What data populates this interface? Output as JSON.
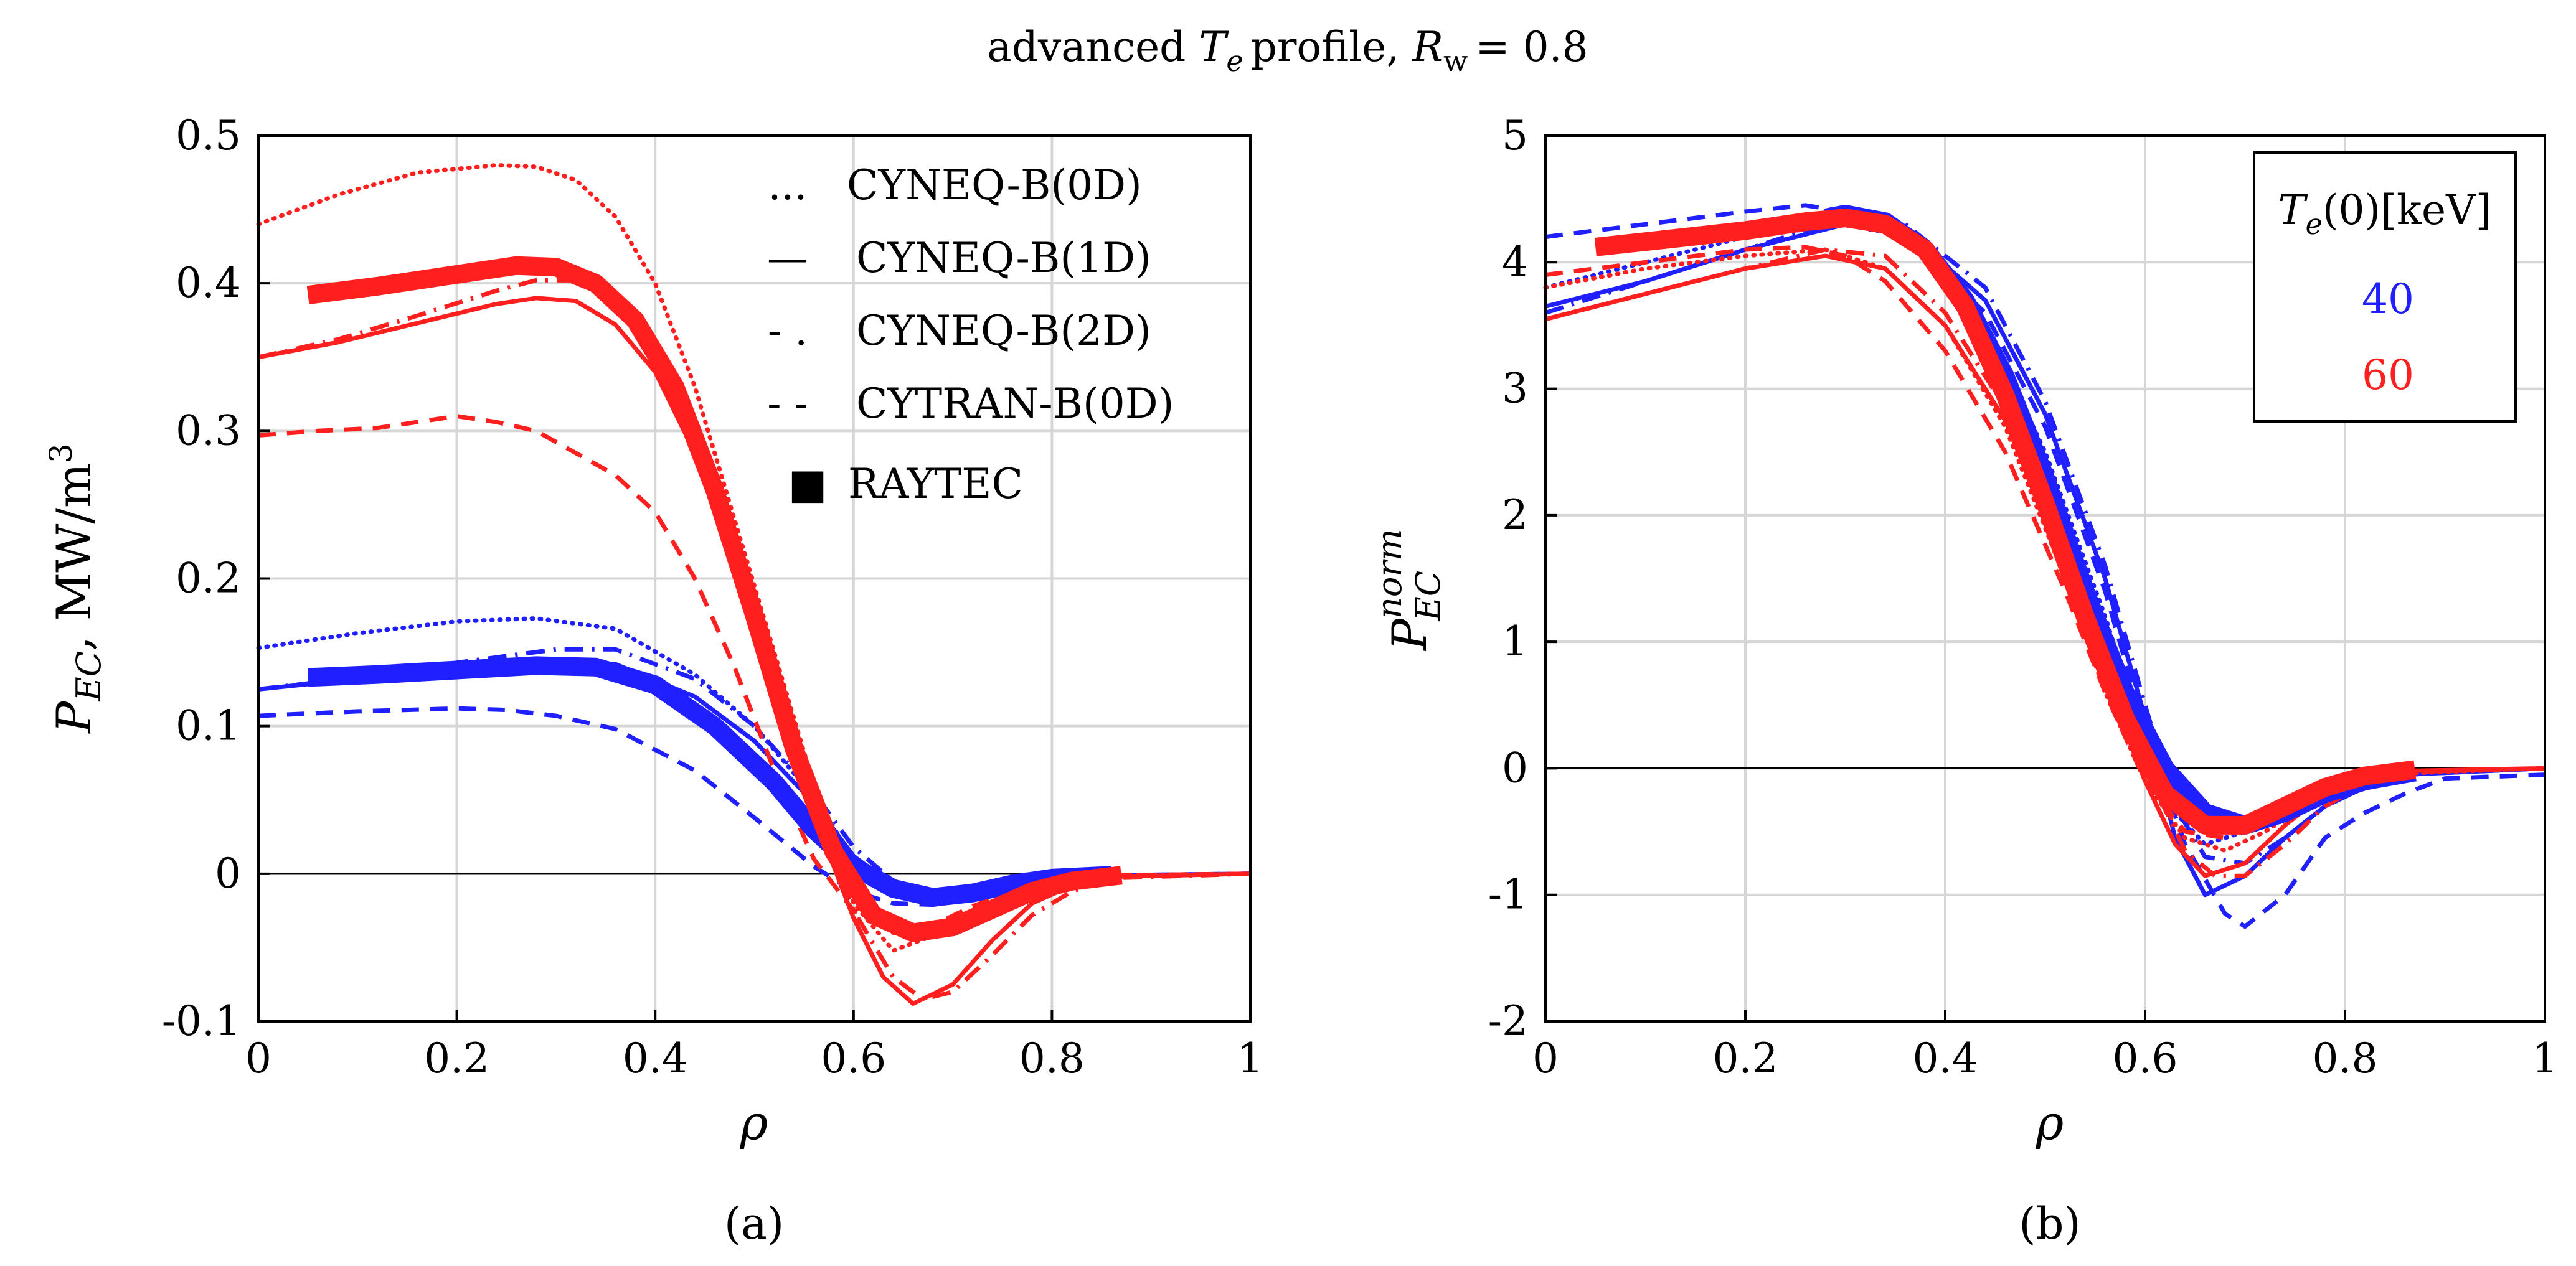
{
  "figure": {
    "title": {
      "prefix": "advanced",
      "te_symbol": "T",
      "te_subscript": "e",
      "middle": "profile,",
      "rw_symbol": "R",
      "rw_subscript": "w",
      "suffix": "= 0.8"
    },
    "panel_labels": [
      "(a)",
      "(b)"
    ]
  },
  "chart_data": [
    {
      "panel": "(a)",
      "type": "line",
      "xlabel": "ρ",
      "ylabel": "P_EC, MW/m^3",
      "ylabel_parts": {
        "symbol": "P",
        "subscript": "EC",
        "separator": ",",
        "units": "MW/m",
        "units_sup": "3"
      },
      "xlim": [
        0,
        1
      ],
      "ylim": [
        -0.1,
        0.5
      ],
      "xticks": [
        0,
        0.2,
        0.4,
        0.6,
        0.8,
        1
      ],
      "xtick_labels": [
        "0",
        "0.2",
        "0.4",
        "0.6",
        "0.8",
        "1"
      ],
      "yticks": [
        -0.1,
        0,
        0.1,
        0.2,
        0.3,
        0.4,
        0.5
      ],
      "ytick_labels": [
        "-0.1",
        "0",
        "0.1",
        "0.2",
        "0.3",
        "0.4",
        "0.5"
      ],
      "grid": true,
      "legend": {
        "placement": "top-right",
        "entries": [
          {
            "marker": "...",
            "label": "CYNEQ-B(0D)",
            "style": "dotted"
          },
          {
            "marker": "—",
            "label": "CYNEQ-B(1D)",
            "style": "solid"
          },
          {
            "marker": "- .",
            "label": "CYNEQ-B(2D)",
            "style": "dashdot"
          },
          {
            "marker": "- -",
            "label": "CYTRAN-B(0D)",
            "style": "dashed"
          },
          {
            "marker": "■",
            "label": "RAYTEC",
            "style": "thick"
          }
        ]
      },
      "series": [
        {
          "te0": "40",
          "code": "CYNEQ-B(0D)",
          "style": "dotted",
          "color": "#1f1fff",
          "x": [
            0,
            0.1,
            0.2,
            0.28,
            0.36,
            0.44,
            0.5,
            0.56,
            0.6,
            0.64,
            0.68,
            0.72,
            0.76,
            0.8,
            0.86,
            1
          ],
          "y": [
            0.153,
            0.163,
            0.171,
            0.173,
            0.166,
            0.135,
            0.1,
            0.052,
            0.01,
            -0.012,
            -0.018,
            -0.014,
            -0.007,
            -0.003,
            -0.001,
            0
          ]
        },
        {
          "te0": "40",
          "code": "CYNEQ-B(1D)",
          "style": "solid",
          "color": "#1f1fff",
          "x": [
            0,
            0.1,
            0.2,
            0.3,
            0.36,
            0.44,
            0.5,
            0.56,
            0.6,
            0.64,
            0.68,
            0.72,
            0.76,
            0.8,
            0.86,
            1
          ],
          "y": [
            0.125,
            0.132,
            0.14,
            0.145,
            0.142,
            0.12,
            0.09,
            0.048,
            0.012,
            -0.008,
            -0.015,
            -0.012,
            -0.006,
            -0.003,
            -0.001,
            0
          ]
        },
        {
          "te0": "40",
          "code": "CYNEQ-B(2D)",
          "style": "dashdot",
          "color": "#1f1fff",
          "x": [
            0,
            0.1,
            0.2,
            0.3,
            0.36,
            0.44,
            0.5,
            0.56,
            0.6,
            0.64,
            0.68,
            0.72,
            0.76,
            0.8,
            0.86,
            1
          ],
          "y": [
            0.125,
            0.133,
            0.143,
            0.152,
            0.152,
            0.132,
            0.1,
            0.055,
            0.018,
            -0.005,
            -0.016,
            -0.016,
            -0.01,
            -0.004,
            -0.001,
            0
          ]
        },
        {
          "te0": "40",
          "code": "CYTRAN-B(0D)",
          "style": "dashed",
          "color": "#1f1fff",
          "x": [
            0,
            0.1,
            0.2,
            0.25,
            0.3,
            0.36,
            0.44,
            0.5,
            0.56,
            0.6,
            0.64,
            0.68,
            0.72,
            0.76,
            0.8,
            0.86,
            1
          ],
          "y": [
            0.107,
            0.11,
            0.112,
            0.111,
            0.107,
            0.098,
            0.07,
            0.038,
            0.005,
            -0.012,
            -0.02,
            -0.021,
            -0.017,
            -0.01,
            -0.004,
            -0.001,
            0
          ]
        },
        {
          "te0": "40",
          "code": "RAYTEC",
          "style": "thick",
          "color": "#1f1fff",
          "x": [
            0.05,
            0.12,
            0.2,
            0.28,
            0.34,
            0.4,
            0.46,
            0.52,
            0.56,
            0.6,
            0.64,
            0.68,
            0.72,
            0.76,
            0.8,
            0.86
          ],
          "y": [
            0.133,
            0.135,
            0.138,
            0.141,
            0.14,
            0.128,
            0.1,
            0.062,
            0.03,
            0.005,
            -0.01,
            -0.016,
            -0.013,
            -0.007,
            -0.003,
            -0.001
          ]
        },
        {
          "te0": "60",
          "code": "CYNEQ-B(0D)",
          "style": "dotted",
          "color": "#ff1f1f",
          "x": [
            0,
            0.08,
            0.16,
            0.24,
            0.28,
            0.32,
            0.36,
            0.4,
            0.44,
            0.48,
            0.52,
            0.56,
            0.6,
            0.64,
            0.68,
            0.72,
            0.76,
            0.8,
            0.86,
            1
          ],
          "y": [
            0.44,
            0.46,
            0.475,
            0.48,
            0.479,
            0.47,
            0.445,
            0.4,
            0.33,
            0.24,
            0.15,
            0.06,
            -0.02,
            -0.052,
            -0.042,
            -0.028,
            -0.014,
            -0.006,
            -0.001,
            0
          ]
        },
        {
          "te0": "60",
          "code": "CYNEQ-B(1D)",
          "style": "solid",
          "color": "#ff1f1f",
          "x": [
            0,
            0.08,
            0.16,
            0.24,
            0.28,
            0.32,
            0.36,
            0.4,
            0.44,
            0.48,
            0.52,
            0.56,
            0.6,
            0.63,
            0.66,
            0.7,
            0.74,
            0.78,
            0.82,
            0.86,
            1
          ],
          "y": [
            0.35,
            0.36,
            0.373,
            0.386,
            0.39,
            0.388,
            0.372,
            0.34,
            0.285,
            0.21,
            0.12,
            0.04,
            -0.03,
            -0.07,
            -0.088,
            -0.075,
            -0.045,
            -0.02,
            -0.008,
            -0.002,
            0
          ]
        },
        {
          "te0": "60",
          "code": "CYNEQ-B(2D)",
          "style": "dashdot",
          "color": "#ff1f1f",
          "x": [
            0,
            0.08,
            0.16,
            0.24,
            0.28,
            0.32,
            0.36,
            0.4,
            0.44,
            0.48,
            0.52,
            0.56,
            0.6,
            0.64,
            0.67,
            0.7,
            0.74,
            0.78,
            0.82,
            0.86,
            1
          ],
          "y": [
            0.35,
            0.362,
            0.378,
            0.395,
            0.402,
            0.402,
            0.39,
            0.36,
            0.305,
            0.225,
            0.13,
            0.045,
            -0.025,
            -0.07,
            -0.085,
            -0.08,
            -0.055,
            -0.028,
            -0.012,
            -0.003,
            0
          ]
        },
        {
          "te0": "60",
          "code": "CYTRAN-B(0D)",
          "style": "dashed",
          "color": "#ff1f1f",
          "x": [
            0,
            0.06,
            0.12,
            0.2,
            0.24,
            0.28,
            0.32,
            0.36,
            0.4,
            0.44,
            0.48,
            0.52,
            0.56,
            0.6,
            0.64,
            0.68,
            0.72,
            0.76,
            0.8,
            0.86,
            1
          ],
          "y": [
            0.297,
            0.3,
            0.302,
            0.31,
            0.306,
            0.3,
            0.285,
            0.27,
            0.245,
            0.2,
            0.14,
            0.07,
            0.01,
            -0.025,
            -0.04,
            -0.035,
            -0.022,
            -0.012,
            -0.005,
            -0.001,
            0
          ]
        },
        {
          "te0": "60",
          "code": "RAYTEC",
          "style": "thick",
          "color": "#ff1f1f",
          "x": [
            0.05,
            0.12,
            0.2,
            0.26,
            0.3,
            0.34,
            0.38,
            0.42,
            0.46,
            0.5,
            0.54,
            0.58,
            0.62,
            0.66,
            0.7,
            0.74,
            0.78,
            0.82,
            0.87
          ],
          "y": [
            0.392,
            0.398,
            0.406,
            0.412,
            0.411,
            0.4,
            0.375,
            0.33,
            0.26,
            0.175,
            0.085,
            0.015,
            -0.028,
            -0.04,
            -0.036,
            -0.024,
            -0.012,
            -0.005,
            -0.001
          ]
        }
      ]
    },
    {
      "panel": "(b)",
      "type": "line",
      "xlabel": "ρ",
      "ylabel": "P_EC^norm",
      "ylabel_parts": {
        "symbol": "P",
        "subscript": "EC",
        "superscript": "norm"
      },
      "xlim": [
        0,
        1
      ],
      "ylim": [
        -2,
        5
      ],
      "xticks": [
        0,
        0.2,
        0.4,
        0.6,
        0.8,
        1
      ],
      "xtick_labels": [
        "0",
        "0.2",
        "0.4",
        "0.6",
        "0.8",
        "1"
      ],
      "yticks": [
        -2,
        -1,
        0,
        1,
        2,
        3,
        4,
        5
      ],
      "ytick_labels": [
        "-2",
        "-1",
        "0",
        "1",
        "2",
        "3",
        "4",
        "5"
      ],
      "grid": true,
      "legend": {
        "placement": "top-right",
        "title": {
          "symbol": "T",
          "subscript": "e",
          "rest": "(0)[keV]"
        },
        "entries": [
          {
            "label": "40",
            "color": "#1f1fff"
          },
          {
            "label": "60",
            "color": "#ff1f1f"
          }
        ]
      },
      "series": [
        {
          "te0": "40",
          "code": "CYNEQ-B(0D)",
          "style": "dotted",
          "color": "#1f1fff",
          "x": [
            0,
            0.1,
            0.2,
            0.3,
            0.36,
            0.44,
            0.5,
            0.56,
            0.6,
            0.63,
            0.66,
            0.7,
            0.74,
            0.78,
            0.82,
            0.86,
            1
          ],
          "y": [
            3.8,
            4.0,
            4.2,
            4.3,
            4.2,
            3.5,
            2.5,
            1.2,
            0.2,
            -0.35,
            -0.6,
            -0.5,
            -0.35,
            -0.2,
            -0.1,
            -0.05,
            0
          ]
        },
        {
          "te0": "40",
          "code": "CYNEQ-B(1D)",
          "style": "solid",
          "color": "#1f1fff",
          "x": [
            0,
            0.1,
            0.2,
            0.3,
            0.36,
            0.44,
            0.5,
            0.56,
            0.6,
            0.63,
            0.66,
            0.7,
            0.74,
            0.78,
            0.82,
            0.86,
            1
          ],
          "y": [
            3.65,
            3.85,
            4.1,
            4.3,
            4.25,
            3.7,
            2.8,
            1.5,
            0.4,
            -0.55,
            -1.0,
            -0.85,
            -0.55,
            -0.3,
            -0.15,
            -0.05,
            0
          ]
        },
        {
          "te0": "40",
          "code": "CYNEQ-B(2D)",
          "style": "dashdot",
          "color": "#1f1fff",
          "x": [
            0,
            0.1,
            0.2,
            0.3,
            0.36,
            0.44,
            0.5,
            0.56,
            0.6,
            0.63,
            0.66,
            0.7,
            0.74,
            0.78,
            0.82,
            0.86,
            1
          ],
          "y": [
            3.6,
            3.85,
            4.1,
            4.35,
            4.3,
            3.8,
            2.9,
            1.6,
            0.5,
            -0.3,
            -0.7,
            -0.75,
            -0.55,
            -0.3,
            -0.15,
            -0.05,
            0
          ]
        },
        {
          "te0": "40",
          "code": "CYTRAN-B(0D)",
          "style": "dashed",
          "color": "#1f1fff",
          "x": [
            0,
            0.1,
            0.2,
            0.26,
            0.3,
            0.36,
            0.44,
            0.5,
            0.56,
            0.6,
            0.64,
            0.68,
            0.7,
            0.74,
            0.78,
            0.82,
            0.86,
            0.9,
            1
          ],
          "y": [
            4.2,
            4.3,
            4.4,
            4.45,
            4.4,
            4.2,
            3.6,
            2.7,
            1.4,
            0.3,
            -0.6,
            -1.15,
            -1.25,
            -1.0,
            -0.55,
            -0.35,
            -0.2,
            -0.08,
            -0.05
          ]
        },
        {
          "te0": "40",
          "code": "RAYTEC",
          "style": "thick",
          "color": "#1f1fff",
          "x": [
            0.28,
            0.3,
            0.34,
            0.38,
            0.42,
            0.46,
            0.5,
            0.54,
            0.58,
            0.62,
            0.66,
            0.7,
            0.74,
            0.78,
            0.82,
            0.87
          ],
          "y": [
            4.35,
            4.38,
            4.32,
            4.1,
            3.7,
            3.1,
            2.3,
            1.4,
            0.6,
            0.0,
            -0.35,
            -0.45,
            -0.35,
            -0.2,
            -0.1,
            -0.03
          ]
        },
        {
          "te0": "60",
          "code": "CYNEQ-B(0D)",
          "style": "dotted",
          "color": "#ff1f1f",
          "x": [
            0,
            0.1,
            0.2,
            0.28,
            0.34,
            0.4,
            0.46,
            0.52,
            0.56,
            0.6,
            0.64,
            0.68,
            0.72,
            0.76,
            0.8,
            0.86,
            1
          ],
          "y": [
            3.8,
            3.95,
            4.05,
            4.1,
            3.95,
            3.5,
            2.7,
            1.5,
            0.6,
            -0.1,
            -0.55,
            -0.65,
            -0.5,
            -0.3,
            -0.15,
            -0.04,
            0
          ]
        },
        {
          "te0": "60",
          "code": "CYNEQ-B(1D)",
          "style": "solid",
          "color": "#ff1f1f",
          "x": [
            0,
            0.1,
            0.2,
            0.28,
            0.34,
            0.4,
            0.46,
            0.52,
            0.56,
            0.6,
            0.63,
            0.66,
            0.7,
            0.74,
            0.78,
            0.82,
            0.86,
            1
          ],
          "y": [
            3.55,
            3.75,
            3.95,
            4.05,
            3.95,
            3.5,
            2.75,
            1.6,
            0.7,
            -0.1,
            -0.6,
            -0.85,
            -0.75,
            -0.45,
            -0.2,
            -0.08,
            -0.02,
            0
          ]
        },
        {
          "te0": "60",
          "code": "CYNEQ-B(2D)",
          "style": "dashdot",
          "color": "#ff1f1f",
          "x": [
            0,
            0.1,
            0.2,
            0.28,
            0.34,
            0.4,
            0.46,
            0.52,
            0.56,
            0.6,
            0.64,
            0.67,
            0.7,
            0.74,
            0.78,
            0.82,
            0.86,
            1
          ],
          "y": [
            3.55,
            3.75,
            3.95,
            4.1,
            4.05,
            3.6,
            2.85,
            1.7,
            0.8,
            0.0,
            -0.65,
            -0.85,
            -0.85,
            -0.6,
            -0.3,
            -0.12,
            -0.03,
            0
          ]
        },
        {
          "te0": "60",
          "code": "CYTRAN-B(0D)",
          "style": "dashed",
          "color": "#ff1f1f",
          "x": [
            0,
            0.1,
            0.2,
            0.26,
            0.3,
            0.34,
            0.4,
            0.46,
            0.52,
            0.56,
            0.6,
            0.64,
            0.68,
            0.72,
            0.76,
            0.8,
            0.86,
            1
          ],
          "y": [
            3.9,
            4.0,
            4.1,
            4.12,
            4.05,
            3.85,
            3.3,
            2.5,
            1.4,
            0.6,
            -0.1,
            -0.5,
            -0.55,
            -0.4,
            -0.25,
            -0.12,
            -0.03,
            0
          ]
        },
        {
          "te0": "60",
          "code": "RAYTEC",
          "style": "thick",
          "color": "#ff1f1f",
          "x": [
            0.05,
            0.12,
            0.2,
            0.26,
            0.3,
            0.34,
            0.38,
            0.42,
            0.46,
            0.5,
            0.54,
            0.58,
            0.62,
            0.66,
            0.7,
            0.74,
            0.78,
            0.82,
            0.87
          ],
          "y": [
            4.12,
            4.18,
            4.25,
            4.32,
            4.35,
            4.3,
            4.1,
            3.65,
            2.95,
            2.1,
            1.2,
            0.4,
            -0.2,
            -0.45,
            -0.45,
            -0.3,
            -0.15,
            -0.06,
            -0.01
          ]
        }
      ]
    }
  ]
}
